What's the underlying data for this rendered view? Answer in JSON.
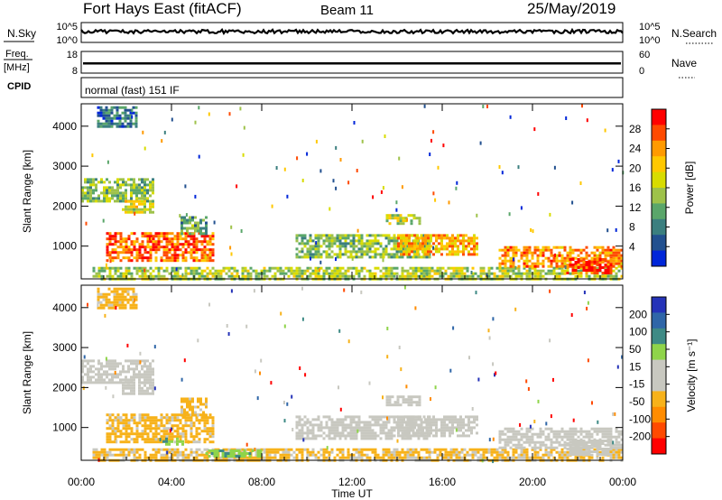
{
  "header": {
    "radar": "Fort Hays East (fitACF)",
    "beam": "Beam 11",
    "date": "25/May/2019"
  },
  "panels": {
    "nsky": {
      "label": "N.Sky",
      "ticks": [
        "10^5",
        "10^0"
      ],
      "right_label": "N.Search",
      "right_ticks": [
        "10^5",
        "10^0"
      ],
      "typical_level_frac": 0.55
    },
    "freq": {
      "label_line1": "Freq.",
      "label_line2": "[MHz]",
      "ticks": [
        "18",
        "8"
      ],
      "right_label": "Nave",
      "right_ticks": [
        "60",
        "0"
      ],
      "typical_level_frac": 0.45
    },
    "cpid": {
      "label": "CPID",
      "text": "normal (fast) 151 IF"
    }
  },
  "x_axis": {
    "label": "Time UT",
    "tick_labels": [
      "00:00",
      "04:00",
      "08:00",
      "12:00",
      "16:00",
      "20:00",
      "00:00"
    ],
    "range_hours": [
      0,
      24
    ]
  },
  "power_colorbar": {
    "label": "Power [dB]",
    "ticks": [
      "28",
      "24",
      "20",
      "16",
      "12",
      "8",
      "4"
    ],
    "colors": [
      "#ff0000",
      "#ff4a00",
      "#ff9a00",
      "#ffc800",
      "#d8dc00",
      "#9ec24a",
      "#5aa66a",
      "#3b7f7f",
      "#22508f",
      "#0026d9"
    ]
  },
  "velocity_colorbar": {
    "label": "Velocity [m s⁻¹]",
    "ticks": [
      "200",
      "100",
      "50",
      "15",
      "-15",
      "-50",
      "-100",
      "-200"
    ],
    "colors": [
      "#2533b8",
      "#2f66a8",
      "#3e8a85",
      "#8fd44a",
      "#c8c8c0",
      "#c8c8c0",
      "#f7b21a",
      "#ff8c00",
      "#ff4a00",
      "#ff0000"
    ]
  },
  "chart_data": [
    {
      "type": "heatmap",
      "title": "",
      "ylabel": "Slant Range [km]",
      "xlabel": "",
      "y_tick_labels": [
        "1000",
        "2000",
        "3000",
        "4000"
      ],
      "ylim": [
        180,
        4560
      ],
      "colorbar": "Power [dB]",
      "echo_regions": [
        {
          "t_start": 1.1,
          "t_end": 5.8,
          "r_start": 650,
          "r_end": 1350,
          "power_db": 26
        },
        {
          "t_start": 0.0,
          "t_end": 3.2,
          "r_start": 2100,
          "r_end": 2700,
          "power_db": 14
        },
        {
          "t_start": 1.8,
          "t_end": 3.2,
          "r_start": 1850,
          "r_end": 2150,
          "power_db": 18
        },
        {
          "t_start": 4.4,
          "t_end": 5.6,
          "r_start": 1300,
          "r_end": 1750,
          "power_db": 12
        },
        {
          "t_start": 0.5,
          "t_end": 24.0,
          "r_start": 200,
          "r_end": 480,
          "power_db": 16
        },
        {
          "t_start": 9.5,
          "t_end": 15.5,
          "r_start": 750,
          "r_end": 1300,
          "power_db": 14
        },
        {
          "t_start": 14.0,
          "t_end": 17.5,
          "r_start": 800,
          "r_end": 1300,
          "power_db": 22
        },
        {
          "t_start": 18.5,
          "t_end": 24.0,
          "r_start": 500,
          "r_end": 1000,
          "power_db": 24
        },
        {
          "t_start": 21.5,
          "t_end": 23.5,
          "r_start": 300,
          "r_end": 700,
          "power_db": 29
        },
        {
          "t_start": 13.5,
          "t_end": 15.0,
          "r_start": 1550,
          "r_end": 1800,
          "power_db": 16
        },
        {
          "t_start": 0.7,
          "t_end": 2.4,
          "r_start": 4000,
          "r_end": 4500,
          "power_db": 8
        }
      ]
    },
    {
      "type": "heatmap",
      "title": "",
      "ylabel": "Slant Range [km]",
      "xlabel": "Time UT",
      "y_tick_labels": [
        "1000",
        "2000",
        "3000",
        "4000"
      ],
      "ylim": [
        180,
        4560
      ],
      "colorbar": "Velocity [m s⁻¹]",
      "echo_regions": [
        {
          "t_start": 1.1,
          "t_end": 5.8,
          "r_start": 650,
          "r_end": 1350,
          "velocity": -60
        },
        {
          "t_start": 0.0,
          "t_end": 3.2,
          "r_start": 2100,
          "r_end": 2700,
          "velocity": 0
        },
        {
          "t_start": 1.8,
          "t_end": 3.2,
          "r_start": 1850,
          "r_end": 2150,
          "velocity": 0
        },
        {
          "t_start": 4.4,
          "t_end": 5.6,
          "r_start": 1300,
          "r_end": 1750,
          "velocity": -60
        },
        {
          "t_start": 0.5,
          "t_end": 24.0,
          "r_start": 200,
          "r_end": 480,
          "velocity": -55
        },
        {
          "t_start": 9.5,
          "t_end": 15.5,
          "r_start": 750,
          "r_end": 1300,
          "velocity": 0
        },
        {
          "t_start": 14.0,
          "t_end": 17.5,
          "r_start": 800,
          "r_end": 1300,
          "velocity": 0
        },
        {
          "t_start": 18.5,
          "t_end": 24.0,
          "r_start": 500,
          "r_end": 1000,
          "velocity": 0
        },
        {
          "t_start": 21.5,
          "t_end": 23.5,
          "r_start": 300,
          "r_end": 700,
          "velocity": 0
        },
        {
          "t_start": 13.5,
          "t_end": 15.0,
          "r_start": 1550,
          "r_end": 1800,
          "velocity": 0
        },
        {
          "t_start": 0.7,
          "t_end": 2.4,
          "r_start": 4000,
          "r_end": 4500,
          "velocity": -60
        },
        {
          "t_start": 5.5,
          "t_end": 8.0,
          "r_start": 250,
          "r_end": 450,
          "velocity": 40
        },
        {
          "t_start": 3.6,
          "t_end": 4.5,
          "r_start": 550,
          "r_end": 750,
          "velocity": 40
        }
      ]
    }
  ]
}
